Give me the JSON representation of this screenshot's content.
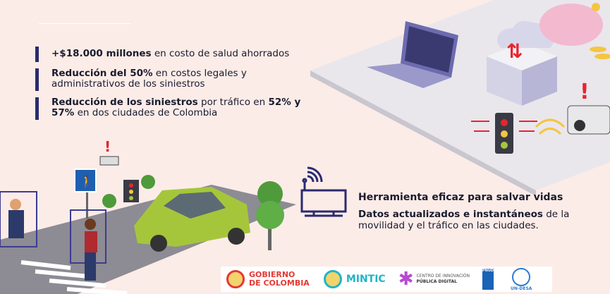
{
  "stats": [
    {
      "bold": "+$18.000 millones",
      "rest": " en costo de salud ahorrados"
    },
    {
      "bold": "Reducción del 50%",
      "rest": " en costos legales y administrativos de los siniestros"
    },
    {
      "bold": "Reducción de los siniestros",
      "rest": " por tráfico en ",
      "bold2": "52% y 57%",
      "rest2": " en dos ciudades de Colombia"
    }
  ],
  "tool": {
    "title": "Herramienta eficaz para salvar vidas",
    "desc_bold": "Datos actualizados e instantáneos",
    "desc_rest": " de la movilidad y el tráfico en las ciudades."
  },
  "logos": {
    "gobierno": "GOBIERNO",
    "gobierno2": "DE COLOMBIA",
    "mintic": "MINTIC",
    "centro1": "CENTRO DE INNOVACIÓN",
    "centro2": "PÚBLICA DIGITAL",
    "pnud": "PNUD",
    "undesa": "UN-DESA"
  },
  "colors": {
    "background": "#fbece8",
    "accent": "#2b2a6e",
    "car": "#a5c63b",
    "alert": "#e5262d"
  }
}
